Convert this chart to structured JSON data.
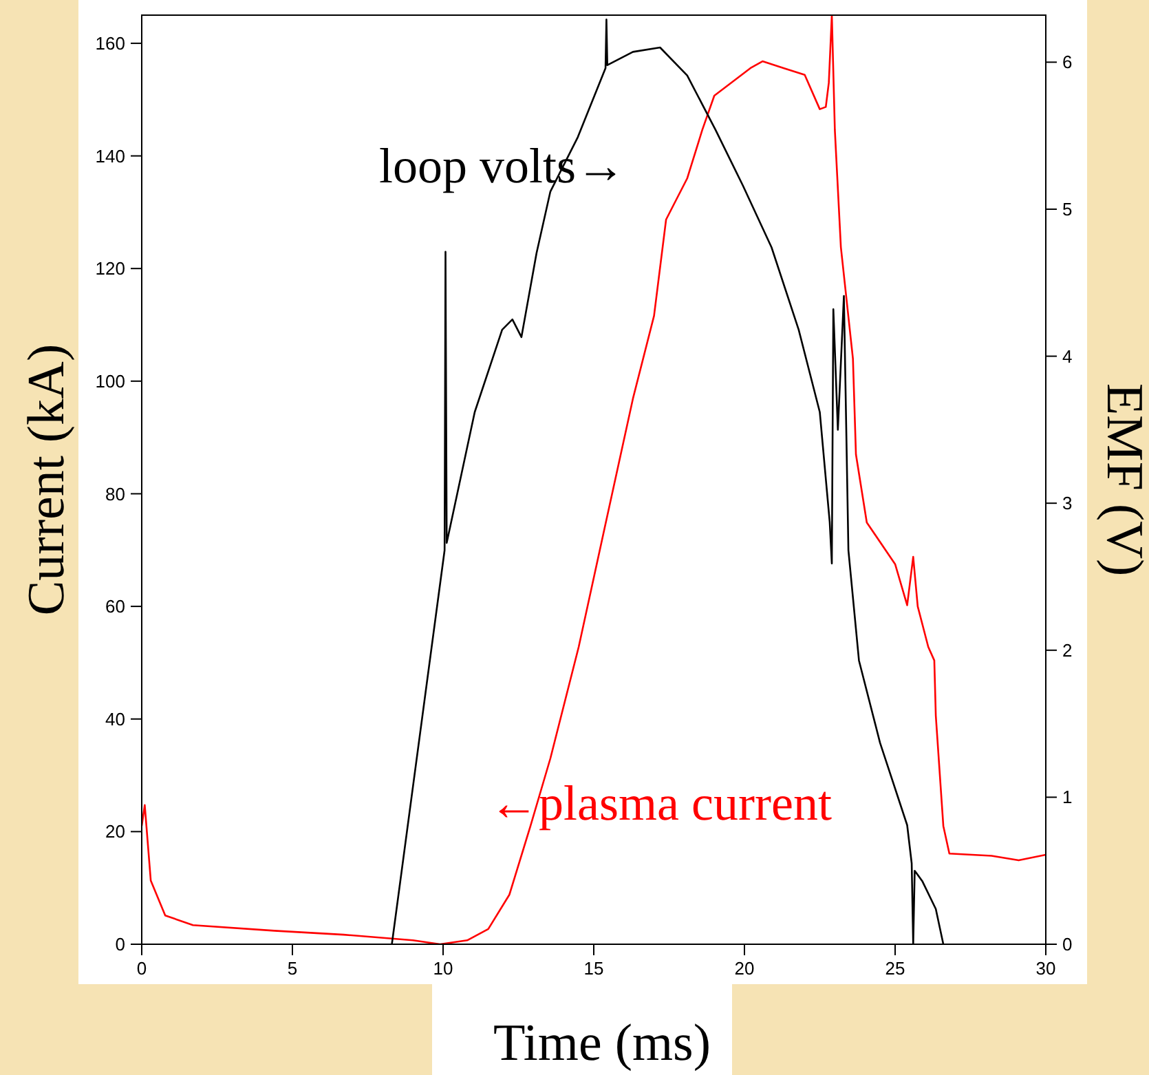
{
  "chart_data": {
    "type": "line",
    "xlabel": "Time (ms)",
    "ylabel": "Current (kA)",
    "y2label": "EMF (V)",
    "xlim": [
      0,
      30
    ],
    "xticks": [
      0,
      5,
      10,
      15,
      20,
      25,
      30
    ],
    "ylim": [
      0,
      165
    ],
    "yticks": [
      0,
      20,
      40,
      60,
      80,
      100,
      120,
      140,
      160
    ],
    "y2lim": [
      0,
      6.32
    ],
    "y2ticks": [
      0,
      1,
      2,
      3,
      4,
      5,
      6
    ],
    "grid": false,
    "annotations": [
      "loop volts→",
      "←plasma current"
    ],
    "series": [
      {
        "color": "#ff0000",
        "x": [
          0,
          0.1,
          0.3,
          0.78,
          1.7,
          4.4,
          6.7,
          9,
          9.9,
          10.8,
          11.5,
          12.2,
          12.9,
          13.56,
          14.5,
          15.4,
          16.3,
          17,
          17.4,
          18.1,
          18.6,
          19,
          20.2,
          20.6,
          21.3,
          22,
          22.5,
          22.7,
          22.8,
          22.9,
          23,
          23.2,
          23.6,
          23.7,
          24.06,
          25,
          25.4,
          25.6,
          25.75,
          26.1,
          26.3,
          26.35,
          26.6,
          26.8,
          28.2,
          29.1,
          30
        ],
        "values": [
          21,
          24.7,
          11.3,
          5.1,
          3.4,
          2.4,
          1.7,
          0.7,
          0,
          0.7,
          2.7,
          8.8,
          21,
          33,
          52.8,
          74.9,
          96.9,
          111.6,
          128.7,
          136,
          144.6,
          150.7,
          155.6,
          156.8,
          155.6,
          154.4,
          148.3,
          148.7,
          153,
          165,
          144.6,
          123.8,
          104,
          87,
          74.9,
          67.5,
          60.2,
          68.8,
          60,
          52.8,
          50.4,
          40.6,
          21,
          16.1,
          15.7,
          14.9,
          15.9
        ]
      },
      {
        "color": "#000000",
        "axis": "y2",
        "x": [
          8.3,
          10.05,
          10.08,
          10.12,
          11.05,
          11.96,
          12.3,
          12.6,
          13.1,
          13.56,
          14.47,
          15.39,
          15.42,
          15.45,
          16.3,
          17.2,
          18.1,
          19.04,
          19.95,
          20.9,
          21.8,
          22.5,
          22.83,
          22.9,
          22.95,
          23.1,
          23.3,
          23.45,
          23.8,
          24.5,
          25.4,
          25.55,
          25.6,
          25.65,
          25.9,
          26.35,
          26.6
        ],
        "values": [
          0,
          2.68,
          4.71,
          2.73,
          3.62,
          4.18,
          4.25,
          4.13,
          4.7,
          5.12,
          5.49,
          5.96,
          6.29,
          5.98,
          6.07,
          6.1,
          5.91,
          5.54,
          5.16,
          4.74,
          4.18,
          3.62,
          2.87,
          2.59,
          4.32,
          3.5,
          4.41,
          2.68,
          1.93,
          1.37,
          0.81,
          0.55,
          0,
          0.5,
          0.43,
          0.24,
          0
        ]
      }
    ]
  }
}
